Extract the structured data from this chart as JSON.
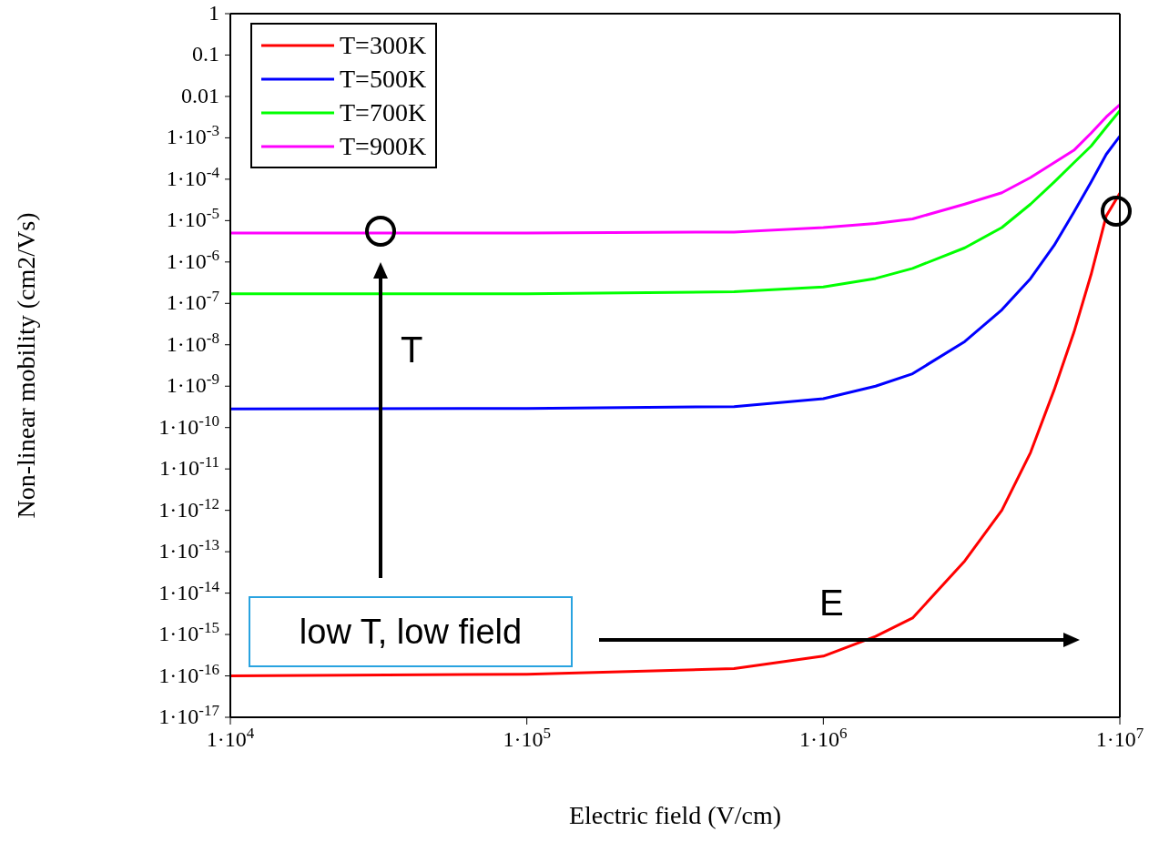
{
  "chart_data": {
    "type": "line",
    "xlabel": "Electric field (V/cm)",
    "ylabel": "Non-linear mobility (cm2/Vs)",
    "x": [
      10000,
      100000,
      500000,
      1000000,
      1500000,
      2000000,
      3000000,
      4000000,
      5000000,
      6000000,
      7000000,
      8000000,
      9000000,
      10000000
    ],
    "series": [
      {
        "name": "T=300K",
        "color": "#ff0000",
        "values": [
          1e-16,
          1.1e-16,
          1.5e-16,
          3e-16,
          9e-16,
          2.5e-15,
          6e-14,
          1e-12,
          2.5e-11,
          8e-10,
          2e-08,
          5e-07,
          1.3e-05,
          4.6e-05
        ]
      },
      {
        "name": "T=500K",
        "color": "#0000ff",
        "values": [
          2.8e-10,
          2.9e-10,
          3.2e-10,
          5e-10,
          1e-09,
          2e-09,
          1.2e-08,
          7e-08,
          4e-07,
          2.5e-06,
          1.6e-05,
          8.5e-05,
          0.0004,
          0.0011
        ]
      },
      {
        "name": "T=700K",
        "color": "#00ff00",
        "values": [
          1.7e-07,
          1.7e-07,
          1.9e-07,
          2.5e-07,
          4e-07,
          7e-07,
          2.2e-06,
          6.8e-06,
          2.5e-05,
          8.5e-05,
          0.00025,
          0.00063,
          0.0018,
          0.0045
        ]
      },
      {
        "name": "T=900K",
        "color": "#ff00ff",
        "values": [
          5e-06,
          5e-06,
          5.3e-06,
          6.8e-06,
          8.5e-06,
          1.1e-05,
          2.5e-05,
          4.7e-05,
          0.00011,
          0.00025,
          0.0005,
          0.0013,
          0.0032,
          0.0063
        ]
      }
    ],
    "log": "xy",
    "xlim": [
      10000,
      10000000
    ],
    "xticks": [
      {
        "value": 10000,
        "label": "1·10$^{4}$"
      },
      {
        "value": 100000,
        "label": "1·10$^{5}$"
      },
      {
        "value": 1000000,
        "label": "1·10$^{6}$"
      },
      {
        "value": 10000000,
        "label": "1·10$^{7}$"
      }
    ],
    "ylim": [
      1e-17,
      1
    ],
    "yticks": [
      1,
      0.1,
      0.01,
      {
        "value": 0.001,
        "label": "1·10$^{-3}$"
      },
      {
        "value": 0.0001,
        "label": "1·10$^{-4}$"
      },
      {
        "value": 1e-05,
        "label": "1·10$^{-5}$"
      },
      {
        "value": 1e-06,
        "label": "1·10$^{-6}$"
      },
      {
        "value": 1e-07,
        "label": "1·10$^{-7}$"
      },
      {
        "value": 1e-08,
        "label": "1·10$^{-8}$"
      },
      {
        "value": 1e-09,
        "label": "1·10$^{-9}$"
      },
      {
        "value": 1e-10,
        "label": "1·10$^{-10}$"
      },
      {
        "value": 1e-11,
        "label": "1·10$^{-11}$"
      },
      {
        "value": 1e-12,
        "label": "1·10$^{-12}$"
      },
      {
        "value": 1e-13,
        "label": "1·10$^{-13}$"
      },
      {
        "value": 1e-14,
        "label": "1·10$^{-14}$"
      },
      {
        "value": 1e-15,
        "label": "1·10$^{-15}$"
      },
      {
        "value": 1e-16,
        "label": "1·10$^{-16}$"
      },
      {
        "value": 1e-17,
        "label": "1·10$^{-17}$"
      }
    ],
    "legend": "top left",
    "line_style": "solid",
    "annotations": [
      "T",
      "E",
      "low T, low field"
    ]
  }
}
